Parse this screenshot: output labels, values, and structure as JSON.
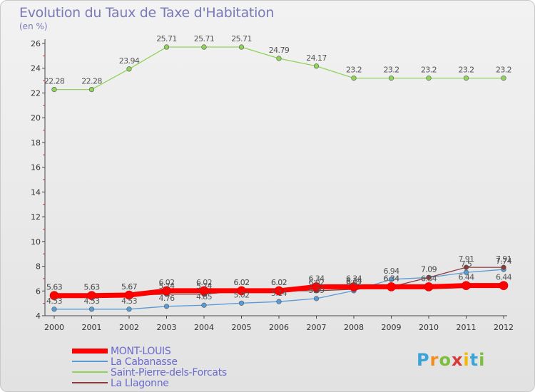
{
  "chart_data": {
    "type": "line",
    "title": "Evolution du Taux de Taxe d'Habitation",
    "subtitle": "(en %)",
    "x": [
      "2000",
      "2001",
      "2002",
      "2003",
      "2004",
      "2005",
      "2006",
      "2007",
      "2008",
      "2009",
      "2010",
      "2011",
      "2012"
    ],
    "ylim": [
      4,
      26
    ],
    "yticks": [
      4,
      6,
      8,
      10,
      12,
      14,
      16,
      18,
      20,
      22,
      24,
      26
    ],
    "grid": false,
    "legend_position": "bottom-left",
    "series": [
      {
        "name": "MONT-LOUIS",
        "color": "#ff0000",
        "labels": true,
        "values": [
          5.63,
          5.63,
          5.67,
          6.02,
          6.02,
          6.02,
          6.02,
          6.34,
          6.34,
          6.34,
          6.34,
          6.44,
          6.44
        ]
      },
      {
        "name": "La Cabanasse",
        "color": "#5b9bd5",
        "labels": true,
        "values": [
          4.53,
          4.53,
          4.53,
          4.76,
          4.85,
          5.02,
          5.14,
          5.39,
          6.02,
          6.94,
          7.09,
          7.5,
          7.74
        ]
      },
      {
        "name": "Saint-Pierre-dels-Forcats",
        "color": "#8fd35a",
        "labels": true,
        "values": [
          22.28,
          22.28,
          23.94,
          25.71,
          25.71,
          25.71,
          24.79,
          24.17,
          23.2,
          23.2,
          23.2,
          23.2,
          23.2
        ]
      },
      {
        "name": "La Llagonne",
        "color": "#8b3a3a",
        "labels": true,
        "values": [
          5.63,
          5.63,
          5.67,
          5.74,
          5.74,
          6.02,
          6.02,
          6.02,
          6.14,
          6.34,
          7.09,
          7.91,
          7.91
        ]
      }
    ]
  },
  "brand": {
    "letters": [
      "P",
      "r",
      "o",
      "x",
      "i",
      "t",
      "i"
    ],
    "colors": [
      "#3aa3d8",
      "#f28c1e",
      "#7bbf3a",
      "#d63a3a",
      "#f5b800",
      "#3aa3d8",
      "#7bbf3a"
    ]
  }
}
